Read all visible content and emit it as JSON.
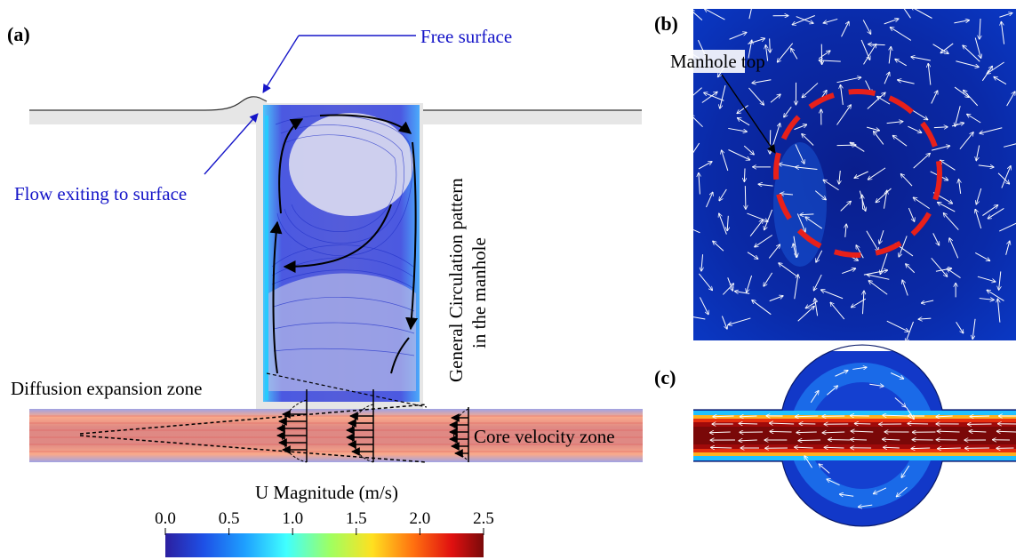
{
  "panels": {
    "a": "(a)",
    "b": "(b)",
    "c": "(c)"
  },
  "annotations": {
    "free_surface": "Free surface",
    "flow_exiting": "Flow exiting to surface",
    "circulation_line1": "General Circulation pattern",
    "circulation_line2": "in the manhole",
    "diffusion_zone": "Diffusion expansion zone",
    "core_zone": "Core velocity zone",
    "manhole_top": "Manhole top"
  },
  "colorbar": {
    "title": "U Magnitude (m/s)",
    "ticks": [
      "0.0",
      "0.5",
      "1.0",
      "1.5",
      "2.0",
      "2.5"
    ],
    "min": 0.0,
    "max": 2.5,
    "colors": [
      "#2c1fa0",
      "#1e50e6",
      "#1ea0ff",
      "#40ffff",
      "#a0ff60",
      "#ffe020",
      "#ff7010",
      "#e01010",
      "#7a0a0a"
    ]
  },
  "colors": {
    "annotation_blue": "#1515c8",
    "arrow_black": "#000000",
    "dash_red": "#e8201a",
    "field_dark": "#0a1e8c",
    "field_mid": "#0a32c8"
  }
}
